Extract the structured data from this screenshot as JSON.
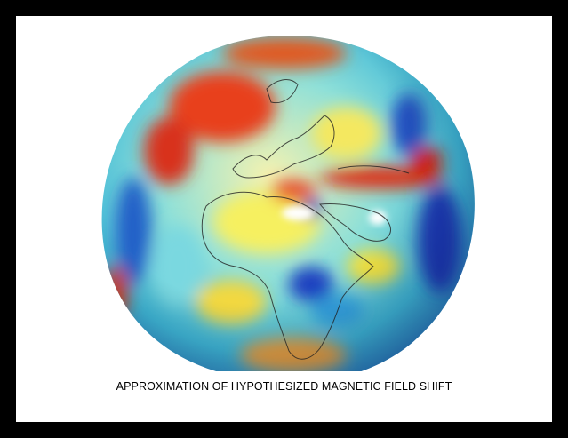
{
  "caption": "APPROXIMATION OF HYPOTHESIZED MAGNETIC FIELD SHIFT"
}
